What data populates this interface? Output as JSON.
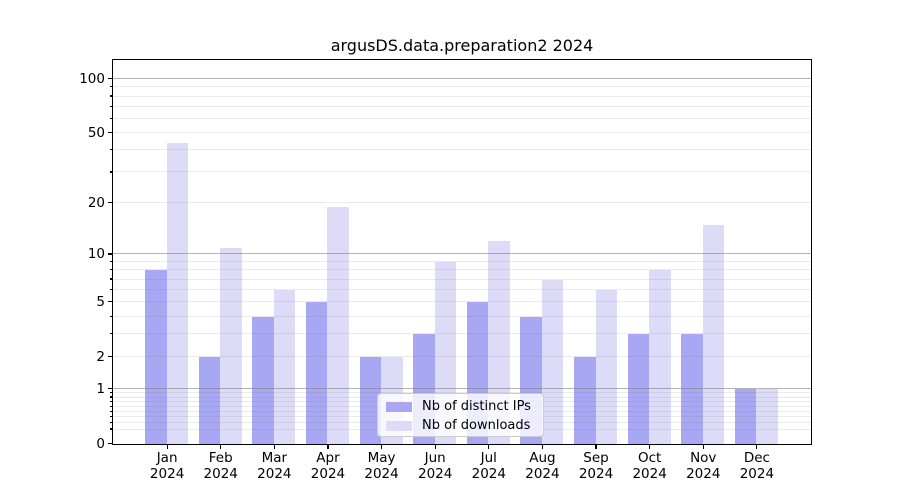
{
  "chart_data": {
    "type": "bar",
    "title": "argusDS.data.preparation2 2024",
    "categories": [
      "Jan",
      "Feb",
      "Mar",
      "Apr",
      "May",
      "Jun",
      "Jul",
      "Aug",
      "Sep",
      "Oct",
      "Nov",
      "Dec"
    ],
    "category_year": "2024",
    "series": [
      {
        "name": "Nb of distinct IPs",
        "color": "#a7a7f4",
        "values": [
          8,
          2,
          4,
          5,
          2,
          3,
          5,
          4,
          2,
          3,
          3,
          1
        ]
      },
      {
        "name": "Nb of downloads",
        "color": "#dcdcf9",
        "values": [
          44,
          11,
          6,
          19,
          2,
          9,
          12,
          7,
          6,
          8,
          15,
          1
        ]
      }
    ],
    "y_axis": {
      "scale": "log1p",
      "ylim": [
        0,
        126
      ],
      "tick_labels": [
        {
          "v": 0,
          "t": "0"
        },
        {
          "v": 1,
          "t": "1"
        },
        {
          "v": 2,
          "t": "2"
        },
        {
          "v": 5,
          "t": "5"
        },
        {
          "v": 10,
          "t": "10"
        },
        {
          "v": 20,
          "t": "20"
        },
        {
          "v": 50,
          "t": "50"
        },
        {
          "v": 100,
          "t": "100"
        }
      ],
      "major_grid": [
        1,
        10,
        100
      ],
      "minor_grid": [
        0.2,
        0.3,
        0.4,
        0.5,
        0.6,
        0.7,
        0.8,
        0.9,
        2,
        3,
        4,
        5,
        6,
        7,
        8,
        9,
        20,
        30,
        40,
        50,
        60,
        70,
        80,
        90
      ]
    },
    "legend_position": "lower center",
    "grid": true,
    "bar_width_ratio": 0.4
  }
}
